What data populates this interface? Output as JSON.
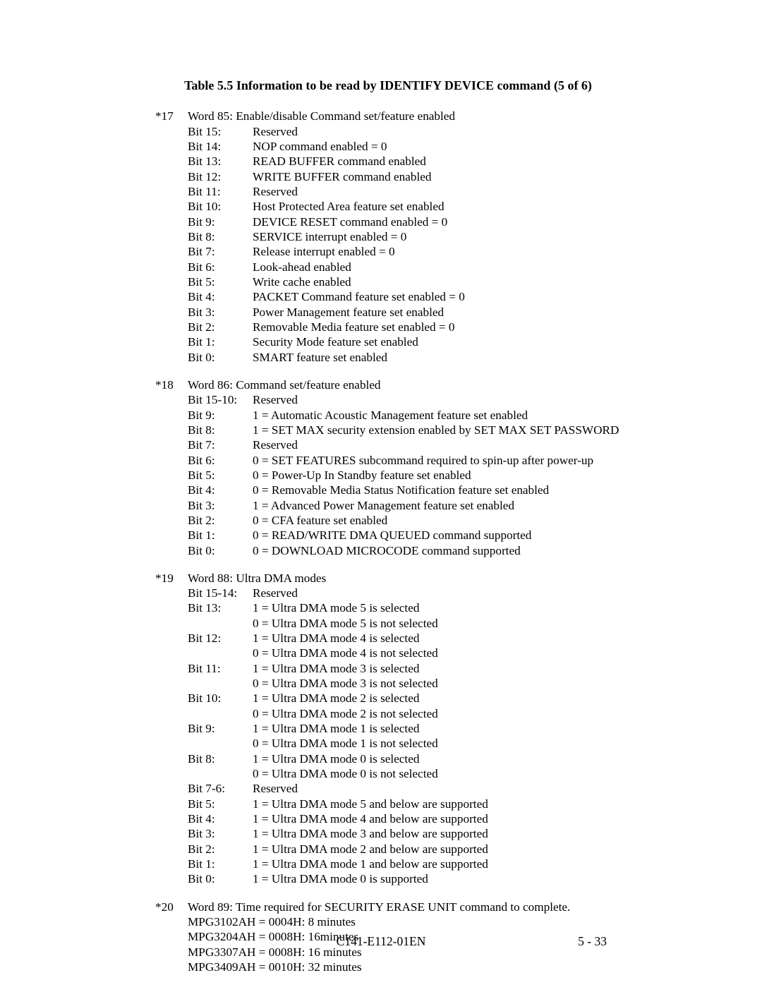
{
  "title": "Table 5.5    Information to be read by IDENTIFY DEVICE command (5 of 6)",
  "sections": [
    {
      "num": "*17",
      "heading": "Word 85:  Enable/disable Command set/feature enabled",
      "rows": [
        {
          "label": "Bit 15:",
          "desc": "Reserved"
        },
        {
          "label": "Bit 14:",
          "desc": "NOP command enabled = 0"
        },
        {
          "label": "Bit 13:",
          "desc": "READ BUFFER command enabled"
        },
        {
          "label": "Bit 12:",
          "desc": "WRITE BUFFER command enabled"
        },
        {
          "label": "Bit 11:",
          "desc": "Reserved"
        },
        {
          "label": "Bit 10:",
          "desc": "Host Protected Area feature set enabled"
        },
        {
          "label": "Bit 9:",
          "desc": "DEVICE RESET command enabled = 0"
        },
        {
          "label": "Bit 8:",
          "desc": "SERVICE interrupt enabled = 0"
        },
        {
          "label": "Bit 7:",
          "desc": "Release interrupt enabled = 0"
        },
        {
          "label": "Bit 6:",
          "desc": "Look-ahead enabled"
        },
        {
          "label": "Bit 5:",
          "desc": "Write cache enabled"
        },
        {
          "label": "Bit 4:",
          "desc": "PACKET Command feature set enabled = 0"
        },
        {
          "label": "Bit 3:",
          "desc": "Power Management feature set enabled"
        },
        {
          "label": "Bit 2:",
          "desc": "Removable Media feature set enabled = 0"
        },
        {
          "label": "Bit 1:",
          "desc": "Security Mode feature set enabled"
        },
        {
          "label": "Bit 0:",
          "desc": "SMART feature set enabled"
        }
      ]
    },
    {
      "num": "*18",
      "heading": "Word 86: Command set/feature enabled",
      "rows": [
        {
          "label": "Bit 15-10:",
          "desc": "Reserved"
        },
        {
          "label": "Bit 9:",
          "desc": "1 = Automatic Acoustic Management feature set enabled"
        },
        {
          "label": "Bit 8:",
          "desc": "1 = SET MAX security extension enabled by SET MAX SET PASSWORD"
        },
        {
          "label": "Bit 7:",
          "desc": "Reserved"
        },
        {
          "label": "Bit 6:",
          "desc": "0 = SET FEATURES subcommand required to spin-up after power-up"
        },
        {
          "label": "Bit 5:",
          "desc": "0 = Power-Up In Standby feature set enabled"
        },
        {
          "label": "Bit 4:",
          "desc": "0 = Removable Media Status Notification feature set enabled"
        },
        {
          "label": "Bit 3:",
          "desc": "1 = Advanced Power Management feature set enabled"
        },
        {
          "label": "Bit 2:",
          "desc": "0 = CFA feature set enabled"
        },
        {
          "label": "Bit 1:",
          "desc": "0 = READ/WRITE DMA QUEUED command supported"
        },
        {
          "label": "Bit 0:",
          "desc": "0 = DOWNLOAD MICROCODE command supported"
        }
      ]
    },
    {
      "num": "*19",
      "heading": "Word 88: Ultra DMA modes",
      "rows": [
        {
          "label": "Bit 15-14:",
          "desc": "Reserved"
        },
        {
          "label": "Bit 13:",
          "desc": "1 = Ultra DMA mode 5 is selected"
        },
        {
          "label": "",
          "desc": "0 = Ultra DMA mode 5 is not selected"
        },
        {
          "label": "Bit 12:",
          "desc": "1 = Ultra DMA mode 4 is selected"
        },
        {
          "label": "",
          "desc": "0 = Ultra DMA mode 4 is not selected"
        },
        {
          "label": "Bit 11:",
          "desc": "1 = Ultra DMA mode 3 is selected"
        },
        {
          "label": "",
          "desc": "0 = Ultra DMA mode 3 is not selected"
        },
        {
          "label": "Bit 10:",
          "desc": "1 = Ultra DMA mode 2 is selected"
        },
        {
          "label": "",
          "desc": "0 = Ultra DMA mode 2 is not selected"
        },
        {
          "label": "Bit 9:",
          "desc": "1 = Ultra DMA mode 1 is selected"
        },
        {
          "label": "",
          "desc": "0 = Ultra DMA mode 1 is not selected"
        },
        {
          "label": "Bit 8:",
          "desc": "1 = Ultra DMA mode 0 is selected"
        },
        {
          "label": "",
          "desc": "0 = Ultra DMA mode 0 is not selected"
        },
        {
          "label": "Bit 7-6:",
          "desc": "Reserved"
        },
        {
          "label": "Bit 5:",
          "desc": "1 = Ultra DMA mode 5 and below are supported"
        },
        {
          "label": "Bit 4:",
          "desc": "1 = Ultra DMA mode 4 and below are supported"
        },
        {
          "label": "Bit 3:",
          "desc": "1 = Ultra DMA mode 3 and below are supported"
        },
        {
          "label": "Bit 2:",
          "desc": "1 = Ultra DMA mode 2 and below are supported"
        },
        {
          "label": "Bit 1:",
          "desc": "1 = Ultra DMA mode 1 and below are supported"
        },
        {
          "label": "Bit 0:",
          "desc": "1 = Ultra DMA mode 0 is supported"
        }
      ]
    },
    {
      "num": "*20",
      "heading": "Word 89: Time required for SECURITY ERASE UNIT command to complete.",
      "plain": [
        "MPG3102AH = 0004H:  8 minutes",
        "MPG3204AH = 0008H:  16minutes",
        "MPG3307AH = 0008H:  16 minutes",
        "MPG3409AH = 0010H:  32 minutes"
      ]
    }
  ],
  "footer": {
    "center": "C141-E112-01EN",
    "right": "5 - 33"
  }
}
